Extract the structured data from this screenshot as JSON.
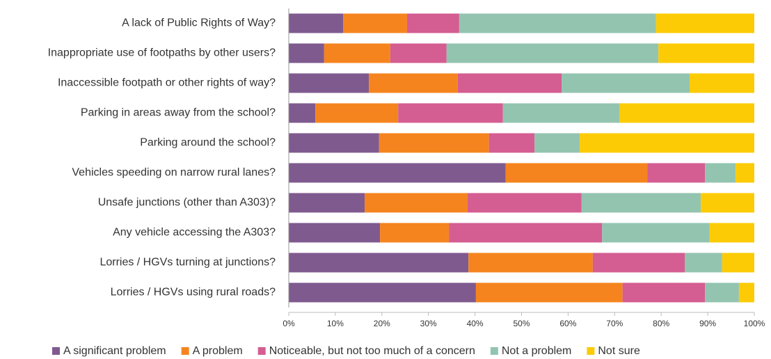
{
  "chart_data": {
    "type": "stacked_bar_horizontal",
    "categories": [
      "A lack of Public Rights of Way?",
      "Inappropriate use of footpaths by other users?",
      "Inaccessible footpath or other rights of way?",
      "Parking in areas away from the school?",
      "Parking around the school?",
      "Vehicles speeding on narrow rural lanes?",
      "Unsafe junctions (other than A303)?",
      "Any vehicle accessing the A303?",
      "Lorries / HGVs turning at junctions?",
      "Lorries / HGVs using rural roads?"
    ],
    "series": [
      {
        "name": "A significant problem",
        "color": "#7f5a8f",
        "values": [
          11.7,
          7.6,
          17.2,
          5.7,
          19.4,
          46.6,
          16.3,
          19.6,
          38.6,
          40.2
        ]
      },
      {
        "name": "A problem",
        "color": "#f5841f",
        "values": [
          13.7,
          14.2,
          19.1,
          17.8,
          23.6,
          30.4,
          22.1,
          14.8,
          26.7,
          31.5
        ]
      },
      {
        "name": "Noticeable, but not too much of a concern",
        "color": "#d45d91",
        "values": [
          11.2,
          12.1,
          22.3,
          22.5,
          9.8,
          12.4,
          24.5,
          32.9,
          19.8,
          17.7
        ]
      },
      {
        "name": "Not a problem",
        "color": "#93c4b0",
        "values": [
          42.3,
          45.5,
          27.5,
          25.0,
          9.7,
          6.6,
          25.6,
          23.1,
          8.0,
          7.3
        ]
      },
      {
        "name": "Not sure",
        "color": "#fccb06",
        "values": [
          21.1,
          20.6,
          13.9,
          29.0,
          37.5,
          4.0,
          11.5,
          9.6,
          6.9,
          3.3
        ]
      }
    ],
    "xlim": [
      0,
      100
    ],
    "xticks": [
      {
        "value": 0,
        "label": "0%"
      },
      {
        "value": 10,
        "label": "10%"
      },
      {
        "value": 20,
        "label": "20%"
      },
      {
        "value": 30,
        "label": "30%"
      },
      {
        "value": 40,
        "label": "40%"
      },
      {
        "value": 50,
        "label": "50%"
      },
      {
        "value": 60,
        "label": "60%"
      },
      {
        "value": 70,
        "label": "70%"
      },
      {
        "value": 80,
        "label": "80%"
      },
      {
        "value": 90,
        "label": "90%"
      },
      {
        "value": 100,
        "label": "100%"
      }
    ],
    "legend": "bottom"
  }
}
